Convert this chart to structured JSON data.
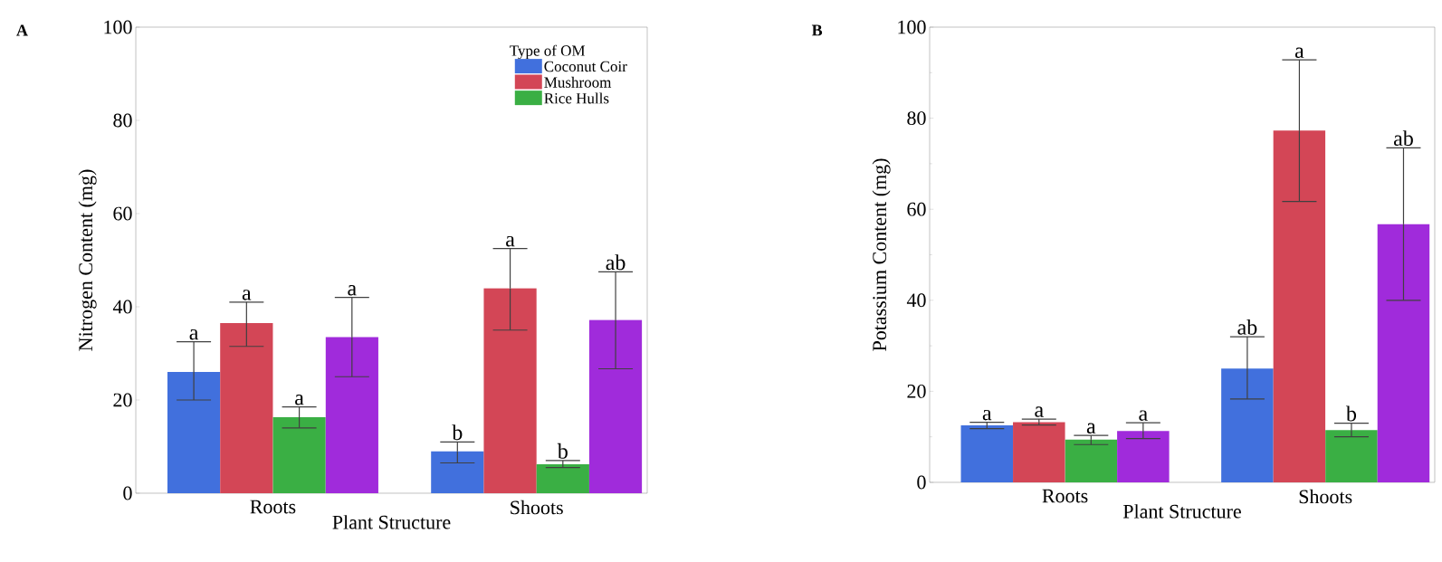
{
  "chart_data": [
    {
      "type": "bar",
      "title": "A",
      "xlabel": "Plant Structure",
      "ylabel": "Nitrogen Content (mg)",
      "legend_title": "Type of OM",
      "legend": "top right",
      "categories": [
        "Roots",
        "Shoots"
      ],
      "ylim": [
        0,
        100
      ],
      "yticks": [
        0,
        20,
        40,
        60,
        80,
        100
      ],
      "series": [
        {
          "name": "Coconut Coir",
          "color": "#4170dd",
          "values": [
            26,
            9
          ],
          "errors": [
            [
              20,
              32.5
            ],
            [
              6.5,
              11
            ]
          ]
        },
        {
          "name": "Mushroom",
          "color": "#d34656",
          "values": [
            36.5,
            44
          ],
          "errors": [
            [
              31.5,
              41
            ],
            [
              35,
              52.5
            ]
          ]
        },
        {
          "name": "Rice Hulls",
          "color": "#3aaf44",
          "values": [
            16.3,
            6.2
          ],
          "errors": [
            [
              14,
              18.5
            ],
            [
              5.5,
              7
            ]
          ]
        },
        {
          "color": "#a02bdb",
          "values": [
            33.5,
            37.2
          ],
          "errors": [
            [
              25,
              42
            ],
            [
              26.7,
              47.5
            ]
          ]
        }
      ],
      "annotations": [
        "a",
        "a",
        "a",
        "a",
        "b",
        "a",
        "b",
        "ab"
      ]
    },
    {
      "type": "bar",
      "title": "B",
      "xlabel": "Plant Structure",
      "ylabel": "Potassium Content (mg)",
      "categories": [
        "Roots",
        "Shoots"
      ],
      "ylim": [
        0,
        100
      ],
      "yticks": [
        0,
        20,
        40,
        60,
        80,
        100
      ],
      "series": [
        {
          "color": "#4170dd",
          "values": [
            12.5,
            25
          ],
          "errors": [
            [
              11.8,
              13.2
            ],
            [
              18.3,
              32
            ]
          ]
        },
        {
          "color": "#d34656",
          "values": [
            13.2,
            77.3
          ],
          "errors": [
            [
              12.6,
              13.9
            ],
            [
              61.7,
              92.8
            ]
          ]
        },
        {
          "color": "#3aaf44",
          "values": [
            9.4,
            11.5
          ],
          "errors": [
            [
              8.3,
              10.3
            ],
            [
              10,
              13
            ]
          ]
        },
        {
          "color": "#a02bdb",
          "values": [
            11.3,
            56.7
          ],
          "errors": [
            [
              9.6,
              13.1
            ],
            [
              40,
              73.5
            ]
          ]
        }
      ],
      "annotations": [
        "a",
        "a",
        "a",
        "a",
        "ab",
        "a",
        "b",
        "ab"
      ]
    }
  ]
}
